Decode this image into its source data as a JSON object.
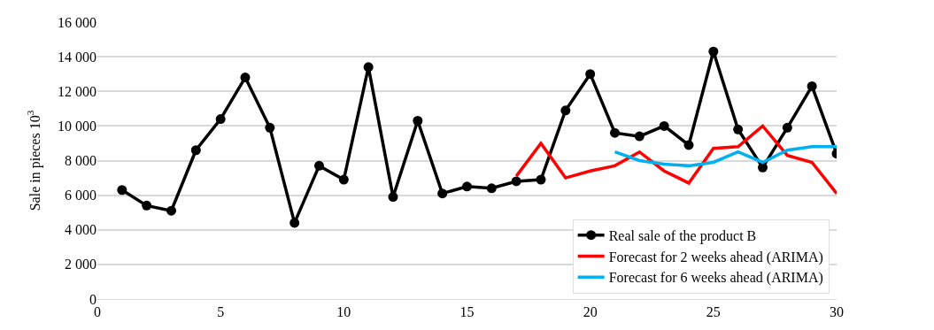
{
  "chart_data": {
    "type": "line",
    "ylabel": "Sale in pieces 10$^{3}$",
    "x": [
      1,
      2,
      3,
      4,
      5,
      6,
      7,
      8,
      9,
      10,
      11,
      12,
      13,
      14,
      15,
      16,
      17,
      18,
      19,
      20,
      21,
      22,
      23,
      24,
      25,
      26,
      27,
      28,
      29,
      30
    ],
    "series": [
      {
        "name": "Real sale of the product B",
        "color": "#000000",
        "marker": "circle",
        "values": [
          6300,
          5400,
          5100,
          8600,
          10400,
          12800,
          9900,
          4400,
          7700,
          6900,
          13400,
          5900,
          10300,
          6100,
          6500,
          6400,
          6800,
          6900,
          10900,
          13000,
          9600,
          9400,
          10000,
          8900,
          14300,
          9800,
          7600,
          9900,
          12300,
          8400
        ]
      },
      {
        "name": "Forecast for 2 weeks ahead (ARIMA)",
        "color": "#ff0000",
        "marker": "none",
        "x": [
          17,
          18,
          19,
          20,
          21,
          22,
          23,
          24,
          25,
          26,
          27,
          28,
          29,
          30
        ],
        "values": [
          7100,
          9000,
          7000,
          7400,
          7700,
          8500,
          7400,
          6700,
          8700,
          8800,
          10000,
          8300,
          7900,
          6100
        ]
      },
      {
        "name": "Forecast for 6 weeks ahead (ARIMA)",
        "color": "#00b0f0",
        "marker": "none",
        "x": [
          21,
          22,
          23,
          24,
          25,
          26,
          27,
          28,
          29,
          30
        ],
        "values": [
          8500,
          8000,
          7800,
          7700,
          7900,
          8500,
          7900,
          8600,
          8800,
          8800
        ]
      }
    ],
    "xlim": [
      0,
      30
    ],
    "xticks": [
      0,
      5,
      10,
      15,
      20,
      25,
      30
    ],
    "ylim": [
      0,
      16000
    ],
    "yticks": [
      {
        "value": 0,
        "label": "0"
      },
      {
        "value": 2000,
        "label": "2 000"
      },
      {
        "value": 4000,
        "label": "4 000"
      },
      {
        "value": 6000,
        "label": "6 000"
      },
      {
        "value": 8000,
        "label": "8 000"
      },
      {
        "value": 10000,
        "label": "10 000"
      },
      {
        "value": 12000,
        "label": "12 000"
      },
      {
        "value": 14000,
        "label": "14 000"
      },
      {
        "value": 16000,
        "label": "16 000"
      }
    ],
    "grid": "y",
    "legend": "bottom right"
  }
}
